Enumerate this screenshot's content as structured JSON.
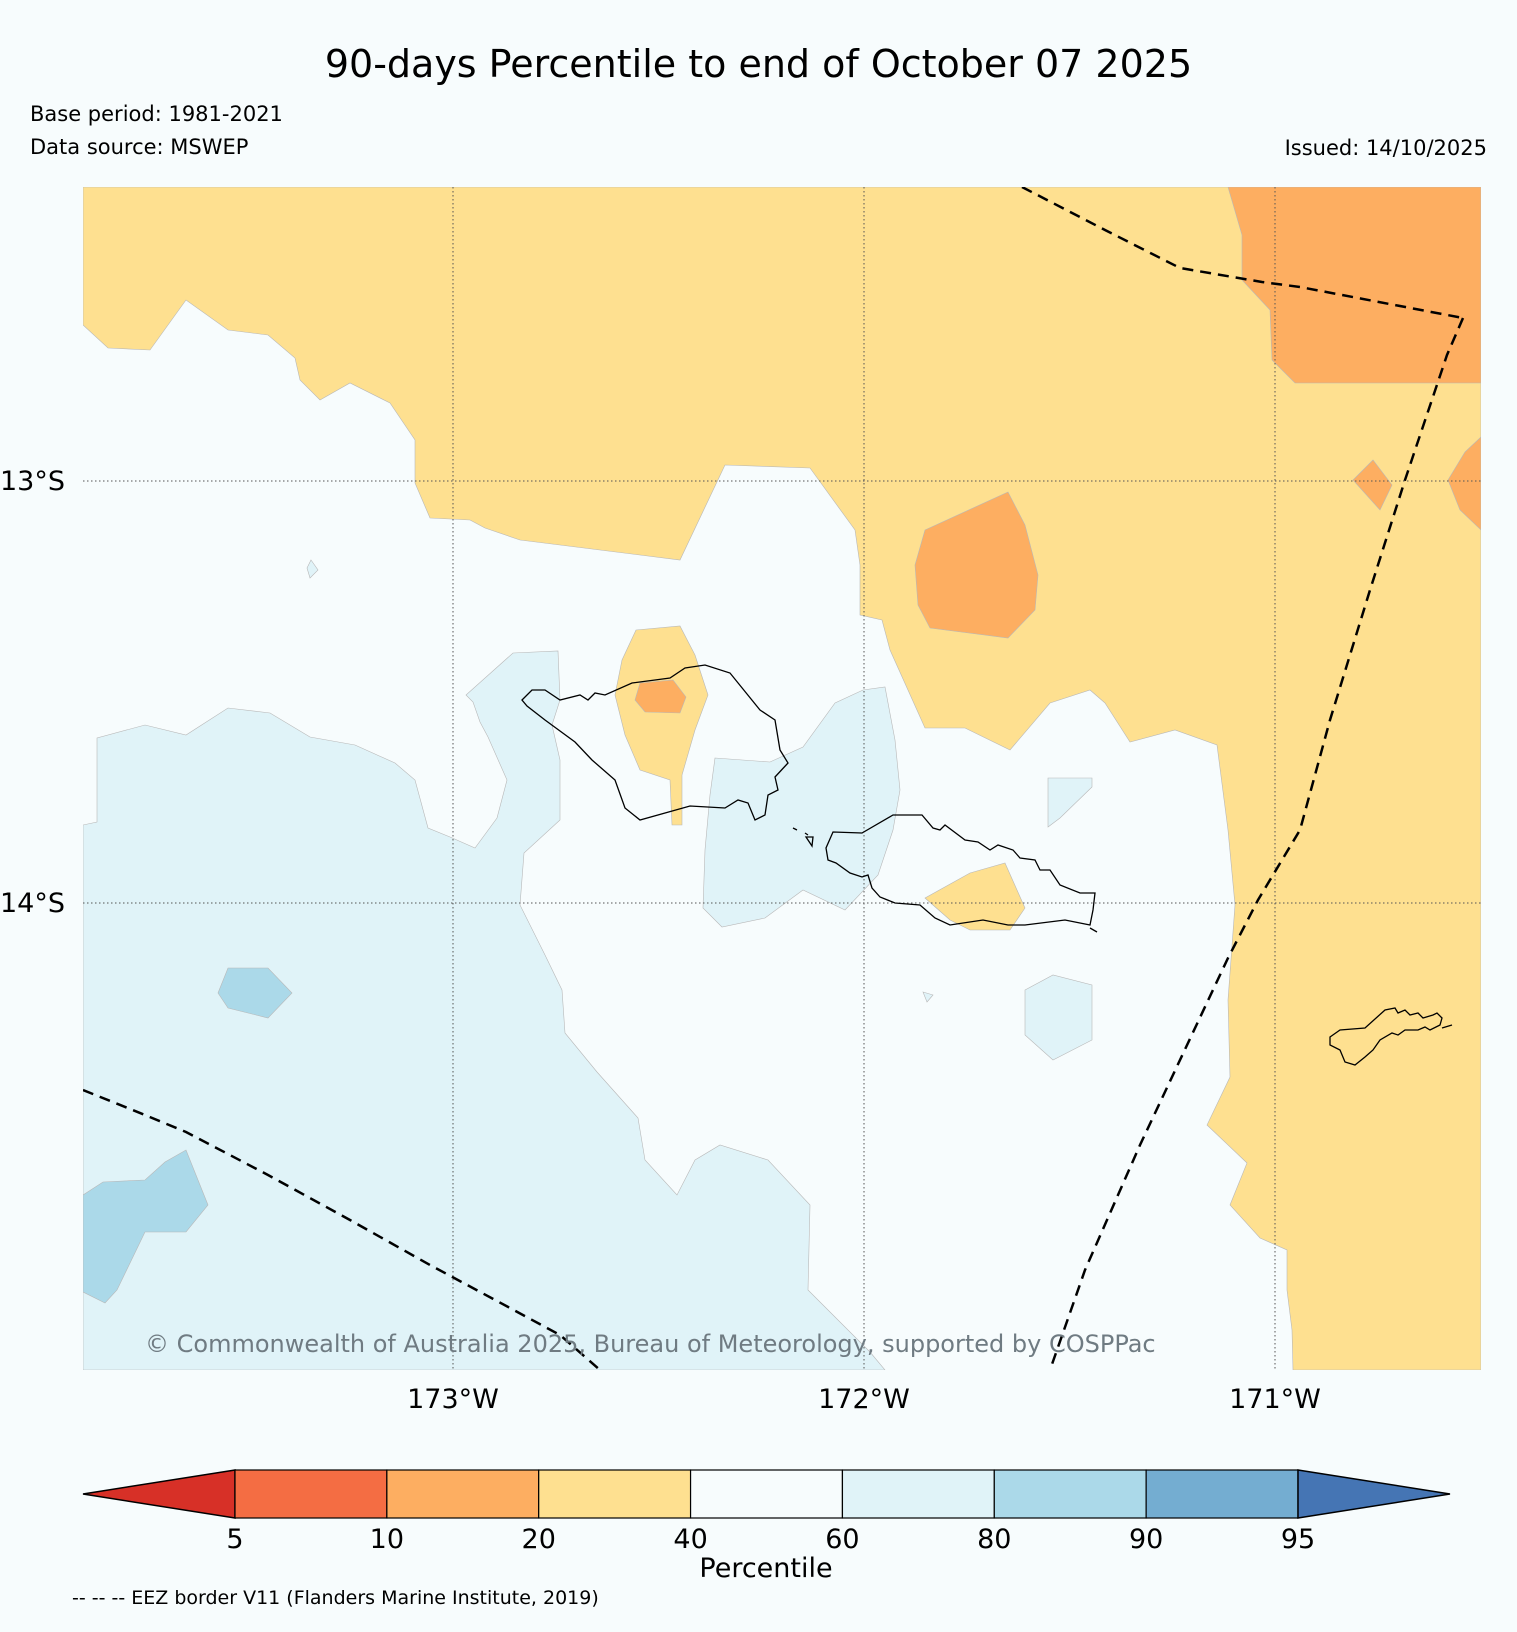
{
  "title": "90-days Percentile to end of October 07 2025",
  "base_period": "Base period: 1981-2021",
  "data_source": "Data source: MSWEP",
  "issued": "Issued: 14/10/2025",
  "copyright": "© Commonwealth of Australia 2025, Bureau of Meteorology, supported by COSPPac",
  "eez_note": "-- -- -- EEZ border V11 (Flanders Marine Institute, 2019)",
  "map": {
    "lat_labels": [
      "13°S",
      "14°S"
    ],
    "lon_labels": [
      "173°W",
      "172°W",
      "171°W"
    ]
  },
  "colorbar": {
    "label": "Percentile",
    "ticks": [
      "5",
      "10",
      "20",
      "40",
      "60",
      "80",
      "90",
      "95"
    ],
    "colors": {
      "below_5": "#d73027",
      "5_10": "#f46d43",
      "10_20": "#fdae61",
      "20_40": "#fee090",
      "40_60": "#f7fcfd",
      "60_80": "#e0f3f8",
      "80_90": "#abd9e9",
      "90_95": "#74add1",
      "above_95": "#4575b4"
    }
  }
}
